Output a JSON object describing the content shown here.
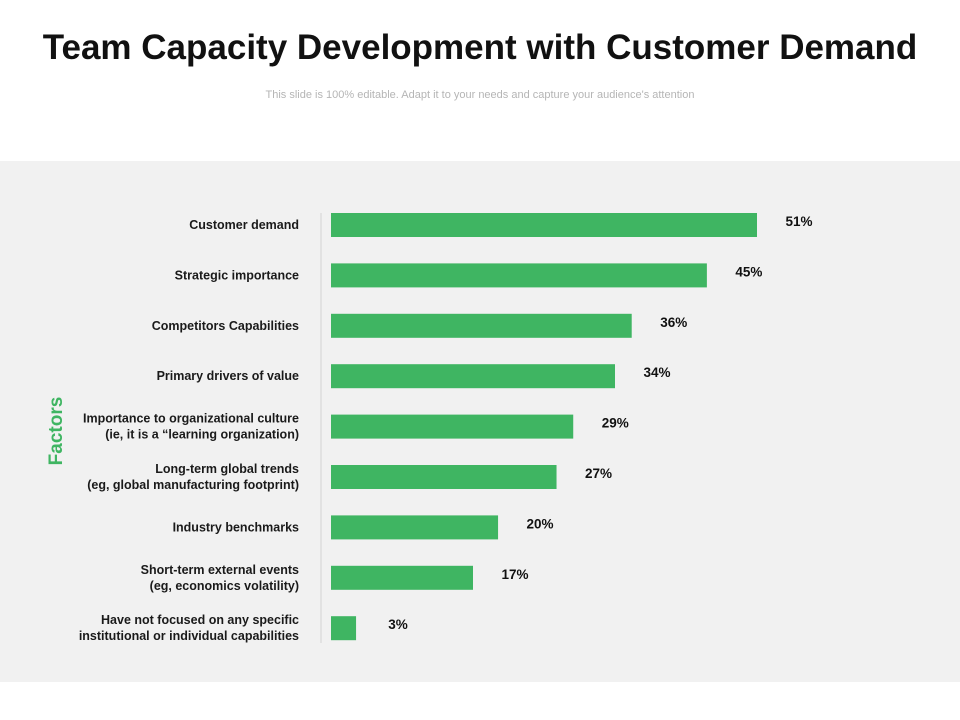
{
  "slide": {
    "title": "Team Capacity Development with Customer Demand",
    "subtitle": "This slide is 100% editable. Adapt it to your needs and capture your audience's attention"
  },
  "colors": {
    "bar": "#3fb562",
    "axis_title": "#3fb562",
    "panel": "#f1f1f1"
  },
  "chart_data": {
    "type": "bar",
    "orientation": "horizontal",
    "title": "",
    "ylabel": "Factors",
    "xlabel": "",
    "xlim": [
      0,
      51
    ],
    "value_suffix": "%",
    "categories": [
      [
        "Customer demand"
      ],
      [
        "Strategic importance"
      ],
      [
        "Competitors Capabilities"
      ],
      [
        "Primary drivers of value"
      ],
      [
        "Importance to organizational culture",
        "(ie, it is a “learning organization)"
      ],
      [
        "Long-term global trends",
        "(eg, global manufacturing footprint)"
      ],
      [
        "Industry benchmarks"
      ],
      [
        "Short-term external events",
        "(eg, economics volatility)"
      ],
      [
        "Have not focused on any specific",
        "institutional or individual capabilities"
      ]
    ],
    "values": [
      51,
      45,
      36,
      34,
      29,
      27,
      20,
      17,
      3
    ]
  }
}
